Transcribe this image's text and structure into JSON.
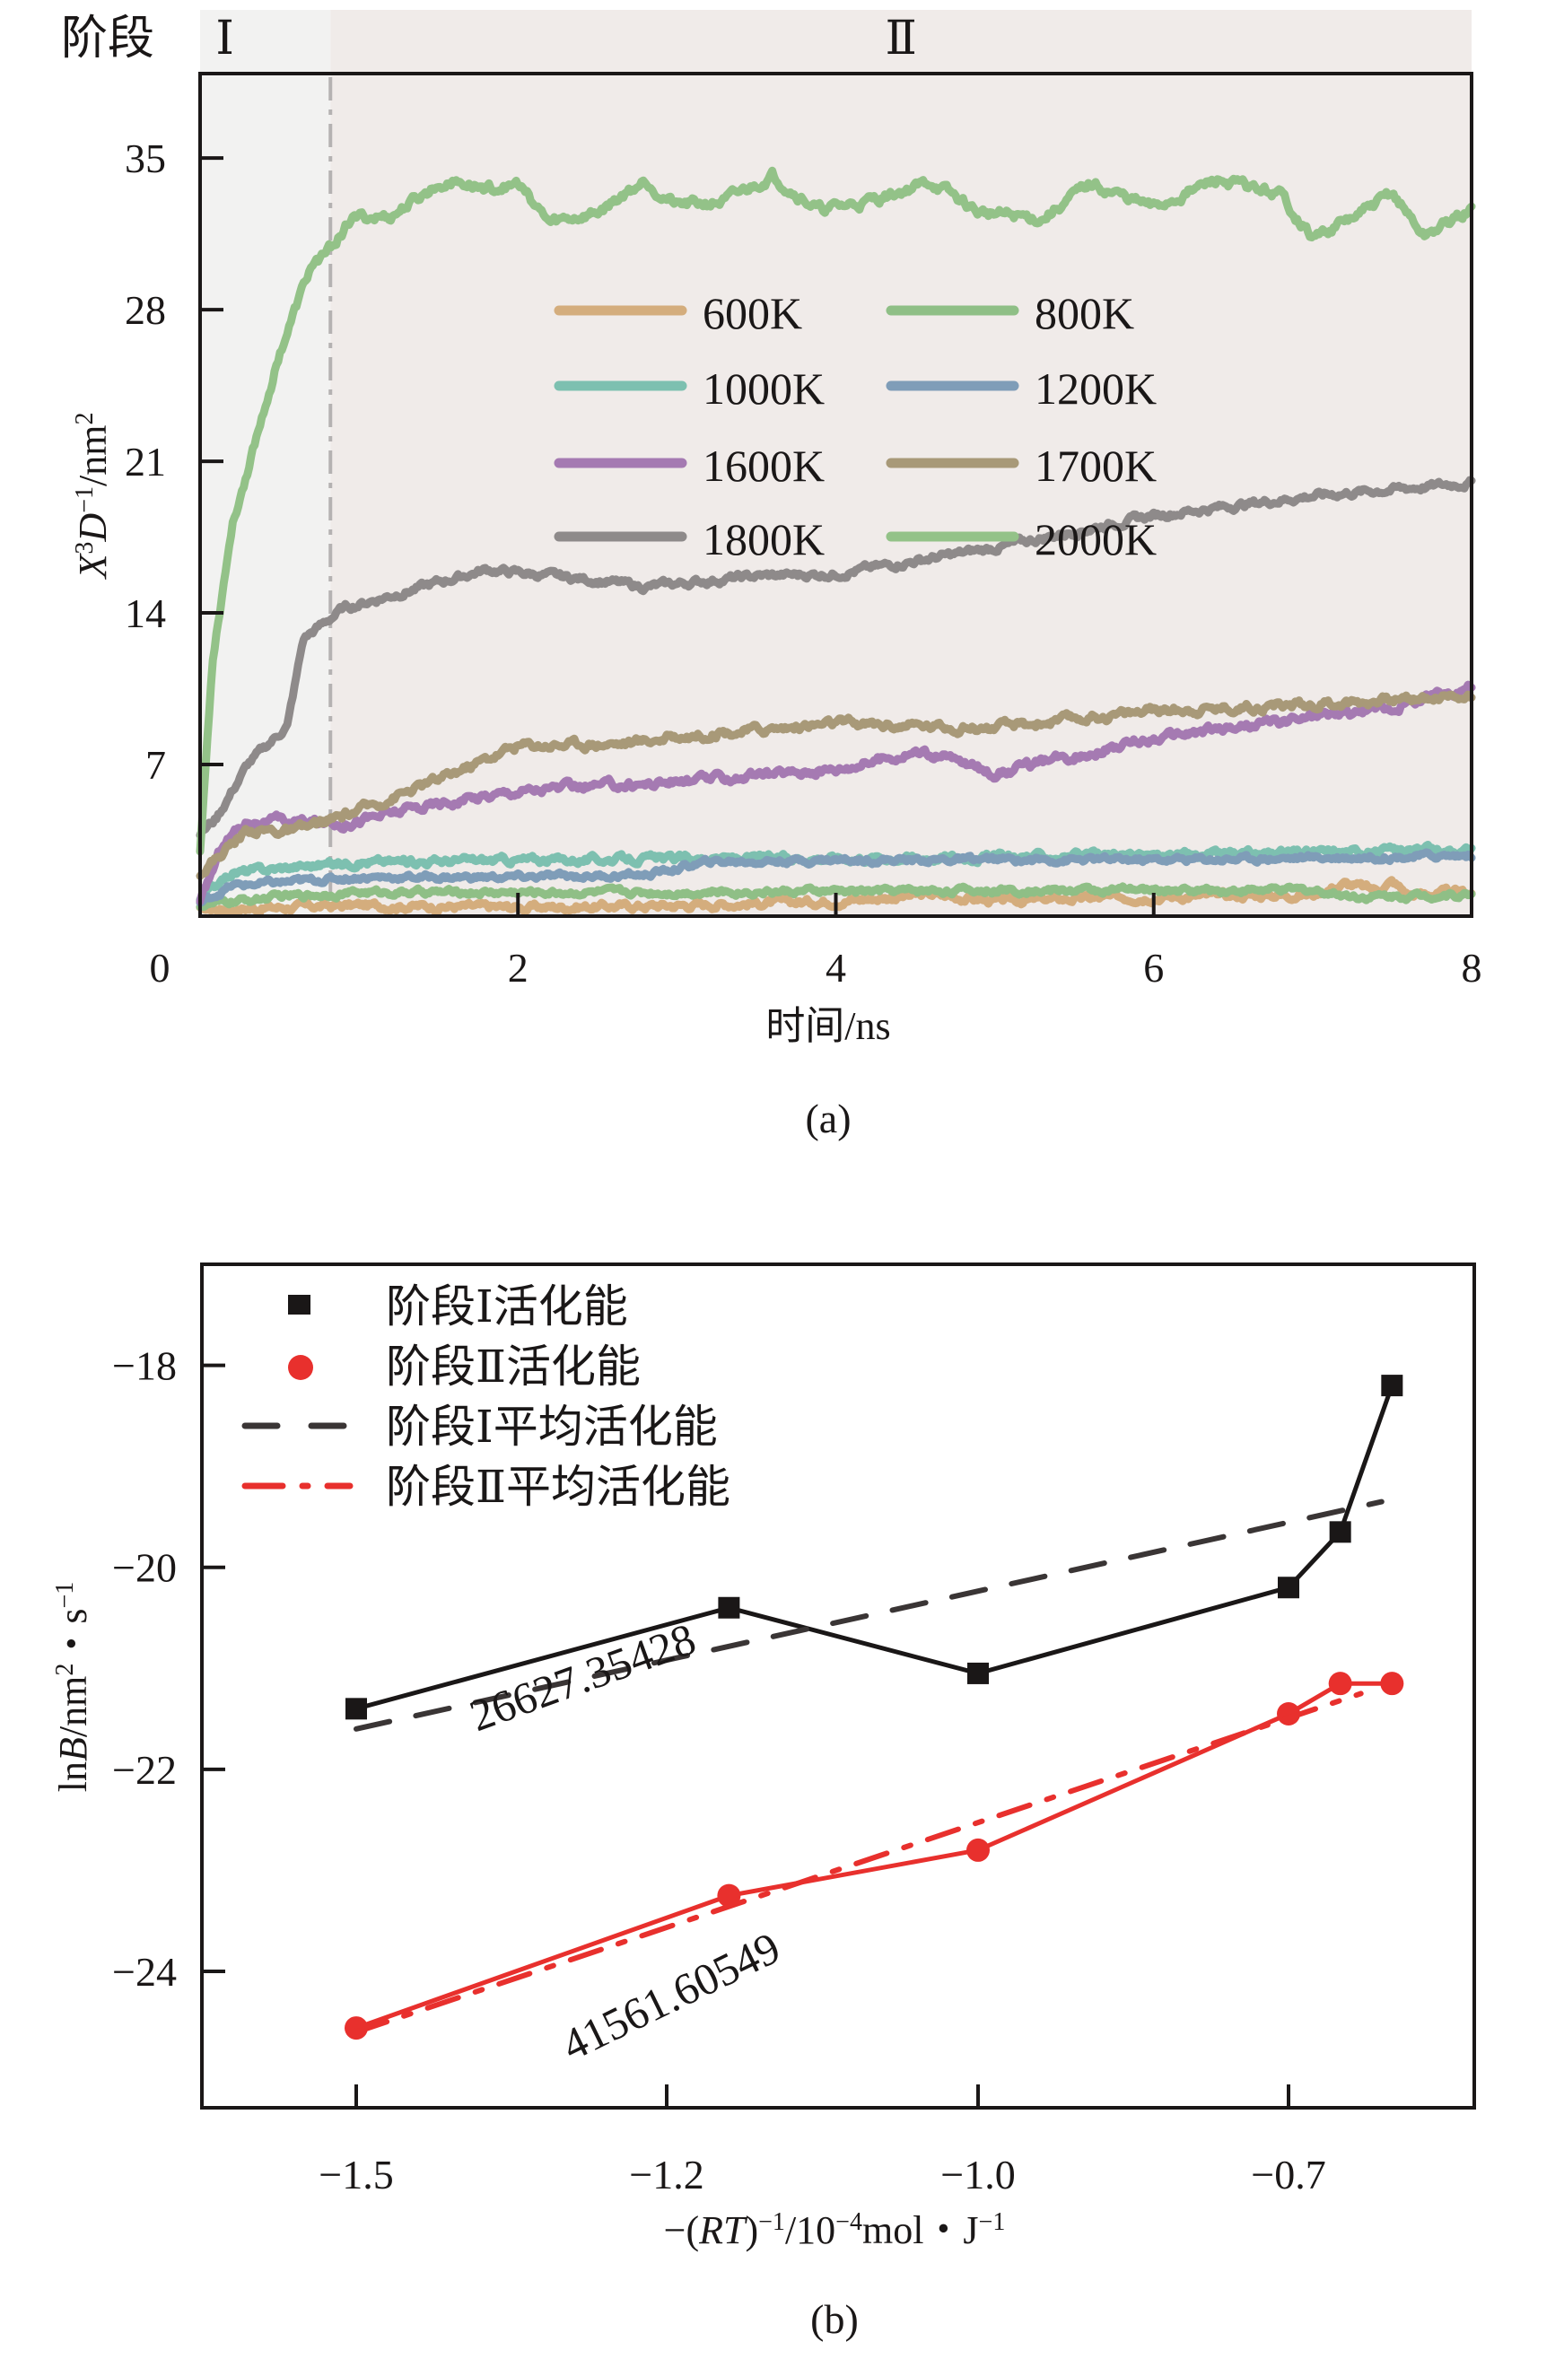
{
  "chart_data": [
    {
      "id": "a",
      "type": "line",
      "panel_label": "(a)",
      "title": "",
      "xlabel": "时间/ns",
      "ylabel_parts": {
        "X": "X",
        "sup3": "3",
        "D": "D",
        "supm1": "−1",
        "unit": "/nm",
        "sup2": "2"
      },
      "ylabel": "X³D⁻¹/nm²",
      "xlim": [
        0,
        8
      ],
      "ylim": [
        0,
        38.9
      ],
      "xticks": [
        0,
        2,
        4,
        6,
        8
      ],
      "xtick_labels": [
        "0",
        "2",
        "4",
        "6",
        "8"
      ],
      "yticks": [
        7,
        14,
        21,
        28,
        35
      ],
      "ytick_labels": [
        "7",
        "14",
        "21",
        "28",
        "35"
      ],
      "grid": false,
      "legend_position": "center-top, two columns",
      "stages": {
        "label": "阶段",
        "divider_x": 0.82,
        "items": [
          {
            "name": "Ⅰ",
            "from": 0,
            "to": 0.82,
            "color": "#f2f2f1"
          },
          {
            "name": "Ⅱ",
            "from": 0.82,
            "to": 8,
            "color": "#f0ebe9"
          }
        ]
      },
      "series": [
        {
          "name": "600K",
          "color": "#d4ad7d",
          "noise": 0.25,
          "points": [
            [
              0,
              0.3
            ],
            [
              1,
              0.5
            ],
            [
              2,
              0.4
            ],
            [
              3,
              0.5
            ],
            [
              4,
              0.7
            ],
            [
              4.6,
              1.0
            ],
            [
              5,
              0.7
            ],
            [
              6,
              0.9
            ],
            [
              7,
              1.0
            ],
            [
              7.2,
              1.5
            ],
            [
              7.4,
              1.2
            ],
            [
              7.5,
              1.6
            ],
            [
              7.6,
              1.0
            ],
            [
              8,
              1.1
            ]
          ]
        },
        {
          "name": "800K",
          "color": "#8fbf86",
          "noise": 0.2,
          "points": [
            [
              0,
              0.5
            ],
            [
              0.5,
              0.9
            ],
            [
              1,
              1.1
            ],
            [
              3,
              1.1
            ],
            [
              5,
              1.2
            ],
            [
              7,
              1.2
            ],
            [
              7.3,
              0.9
            ],
            [
              8,
              1.0
            ]
          ]
        },
        {
          "name": "1000K",
          "color": "#7dc0b0",
          "noise": 0.25,
          "points": [
            [
              0,
              0.8
            ],
            [
              0.2,
              2.0
            ],
            [
              0.6,
              2.3
            ],
            [
              1,
              2.5
            ],
            [
              2,
              2.6
            ],
            [
              4,
              2.7
            ],
            [
              6,
              2.8
            ],
            [
              8,
              3.1
            ]
          ]
        },
        {
          "name": "1200K",
          "color": "#7f9db8",
          "noise": 0.2,
          "points": [
            [
              0,
              0.6
            ],
            [
              0.2,
              1.4
            ],
            [
              1,
              1.8
            ],
            [
              2,
              1.8
            ],
            [
              2.8,
              1.9
            ],
            [
              3.2,
              2.5
            ],
            [
              4,
              2.6
            ],
            [
              6,
              2.6
            ],
            [
              8,
              2.8
            ]
          ]
        },
        {
          "name": "1600K",
          "color": "#a57ab2",
          "noise": 0.3,
          "points": [
            [
              0,
              0.6
            ],
            [
              0.15,
              3.5
            ],
            [
              0.3,
              4.4
            ],
            [
              0.9,
              4.3
            ],
            [
              1.5,
              5.2
            ],
            [
              2,
              5.8
            ],
            [
              3,
              6.2
            ],
            [
              4,
              6.8
            ],
            [
              4.5,
              7.6
            ],
            [
              4.7,
              7.3
            ],
            [
              5,
              6.6
            ],
            [
              5.5,
              7.4
            ],
            [
              6,
              8.2
            ],
            [
              7,
              9.2
            ],
            [
              7.5,
              9.6
            ],
            [
              8,
              10.7
            ]
          ]
        },
        {
          "name": "1700K",
          "color": "#a89978",
          "noise": 0.3,
          "points": [
            [
              0,
              2.0
            ],
            [
              0.3,
              4.0
            ],
            [
              0.6,
              3.9
            ],
            [
              0.9,
              4.6
            ],
            [
              1.5,
              6.3
            ],
            [
              2,
              7.9
            ],
            [
              2.7,
              8.0
            ],
            [
              3,
              8.3
            ],
            [
              4,
              8.9
            ],
            [
              5,
              8.7
            ],
            [
              6,
              9.5
            ],
            [
              7,
              9.8
            ],
            [
              8,
              10.2
            ]
          ]
        },
        {
          "name": "1800K",
          "color": "#8e8a8a",
          "noise": 0.25,
          "points": [
            [
              0,
              3.8
            ],
            [
              0.1,
              4.5
            ],
            [
              0.3,
              7.0
            ],
            [
              0.55,
              8.8
            ],
            [
              0.65,
              12.8
            ],
            [
              0.9,
              14.2
            ],
            [
              1.3,
              15.0
            ],
            [
              1.8,
              16.0
            ],
            [
              2.5,
              15.5
            ],
            [
              2.8,
              15.2
            ],
            [
              3.5,
              15.7
            ],
            [
              4,
              15.8
            ],
            [
              5,
              17.0
            ],
            [
              6,
              18.5
            ],
            [
              7,
              19.4
            ],
            [
              8,
              20.0
            ]
          ]
        },
        {
          "name": "2000K",
          "color": "#93c288",
          "noise": 0.35,
          "points": [
            [
              0,
              3.0
            ],
            [
              0.08,
              12.0
            ],
            [
              0.2,
              18.0
            ],
            [
              0.35,
              22.0
            ],
            [
              0.5,
              26.0
            ],
            [
              0.7,
              30.0
            ],
            [
              0.82,
              30.8
            ],
            [
              0.95,
              32.2
            ],
            [
              1.2,
              32.3
            ],
            [
              1.55,
              34.0
            ],
            [
              1.8,
              33.6
            ],
            [
              2.0,
              33.8
            ],
            [
              2.2,
              32.0
            ],
            [
              2.5,
              32.5
            ],
            [
              2.8,
              34.0
            ],
            [
              3.0,
              32.8
            ],
            [
              3.3,
              33.0
            ],
            [
              3.6,
              34.2
            ],
            [
              3.9,
              32.6
            ],
            [
              4.2,
              33.0
            ],
            [
              4.6,
              33.9
            ],
            [
              4.9,
              32.5
            ],
            [
              5.3,
              32.2
            ],
            [
              5.6,
              33.8
            ],
            [
              6.0,
              32.7
            ],
            [
              6.4,
              34.0
            ],
            [
              6.8,
              33.3
            ],
            [
              7.0,
              31.3
            ],
            [
              7.3,
              32.4
            ],
            [
              7.5,
              33.4
            ],
            [
              7.7,
              31.4
            ],
            [
              8,
              32.6
            ]
          ]
        }
      ]
    },
    {
      "id": "b",
      "type": "line",
      "panel_label": "(b)",
      "title": "",
      "xlabel": "−(RT)⁻¹/10⁻⁴mol・J⁻¹",
      "xlabel_parts": {
        "pre": "−(",
        "RT": "RT",
        "post": ")",
        "sup1": "−1",
        "mid": "/10",
        "sup4": "−4",
        "unit": "mol・J",
        "sup5": "−1"
      },
      "ylabel": "lnB/nm²・s⁻¹",
      "ylabel_parts": {
        "ln": "ln",
        "B": "B",
        "unit": "/nm",
        "sup2": "2",
        "dot": "・s",
        "supm1": "−1"
      },
      "xticks": [
        -1.5,
        -1.2,
        -1.0,
        -0.7
      ],
      "xtick_labels": [
        "−1.5",
        "−1.2",
        "−1.0",
        "−0.7"
      ],
      "x_axis_note": "tick marks are evenly spaced on the rendered axis",
      "yticks": [
        -18,
        -20,
        -22,
        -24
      ],
      "ytick_labels": [
        "−18",
        "−20",
        "−22",
        "−24"
      ],
      "ylim": [
        -25.35,
        -17.0
      ],
      "grid": false,
      "legend_position": "top-left",
      "series": [
        {
          "name": "阶段Ⅰ活化能",
          "color": "#1a1717",
          "marker": "square",
          "line": "solid",
          "x": [
            -1.5,
            -1.16,
            -1.0,
            -0.7,
            -0.65,
            -0.6
          ],
          "values": [
            -21.4,
            -20.4,
            -21.05,
            -20.2,
            -19.65,
            -18.2
          ]
        },
        {
          "name": "阶段Ⅱ活化能",
          "color": "#e8302d",
          "marker": "circle",
          "line": "solid",
          "x": [
            -1.5,
            -1.16,
            -1.0,
            -0.7,
            -0.65,
            -0.6
          ],
          "values": [
            -24.56,
            -23.25,
            -22.8,
            -21.45,
            -21.15,
            -21.15
          ]
        },
        {
          "name": "阶段Ⅰ平均活化能",
          "color": "#3a3535",
          "marker": "none",
          "line": "dashed",
          "x": [
            -1.5,
            -0.61
          ],
          "values": [
            -21.6,
            -19.35
          ]
        },
        {
          "name": "阶段Ⅱ平均活化能",
          "color": "#e8302d",
          "marker": "none",
          "line": "dashdot",
          "x": [
            -1.5,
            -0.63
          ],
          "values": [
            -24.6,
            -21.25
          ]
        }
      ],
      "annotations": [
        {
          "text": "26627.35428",
          "series": "阶段Ⅰ平均活化能"
        },
        {
          "text": "41561.60549",
          "series": "阶段Ⅱ平均活化能"
        }
      ]
    }
  ]
}
